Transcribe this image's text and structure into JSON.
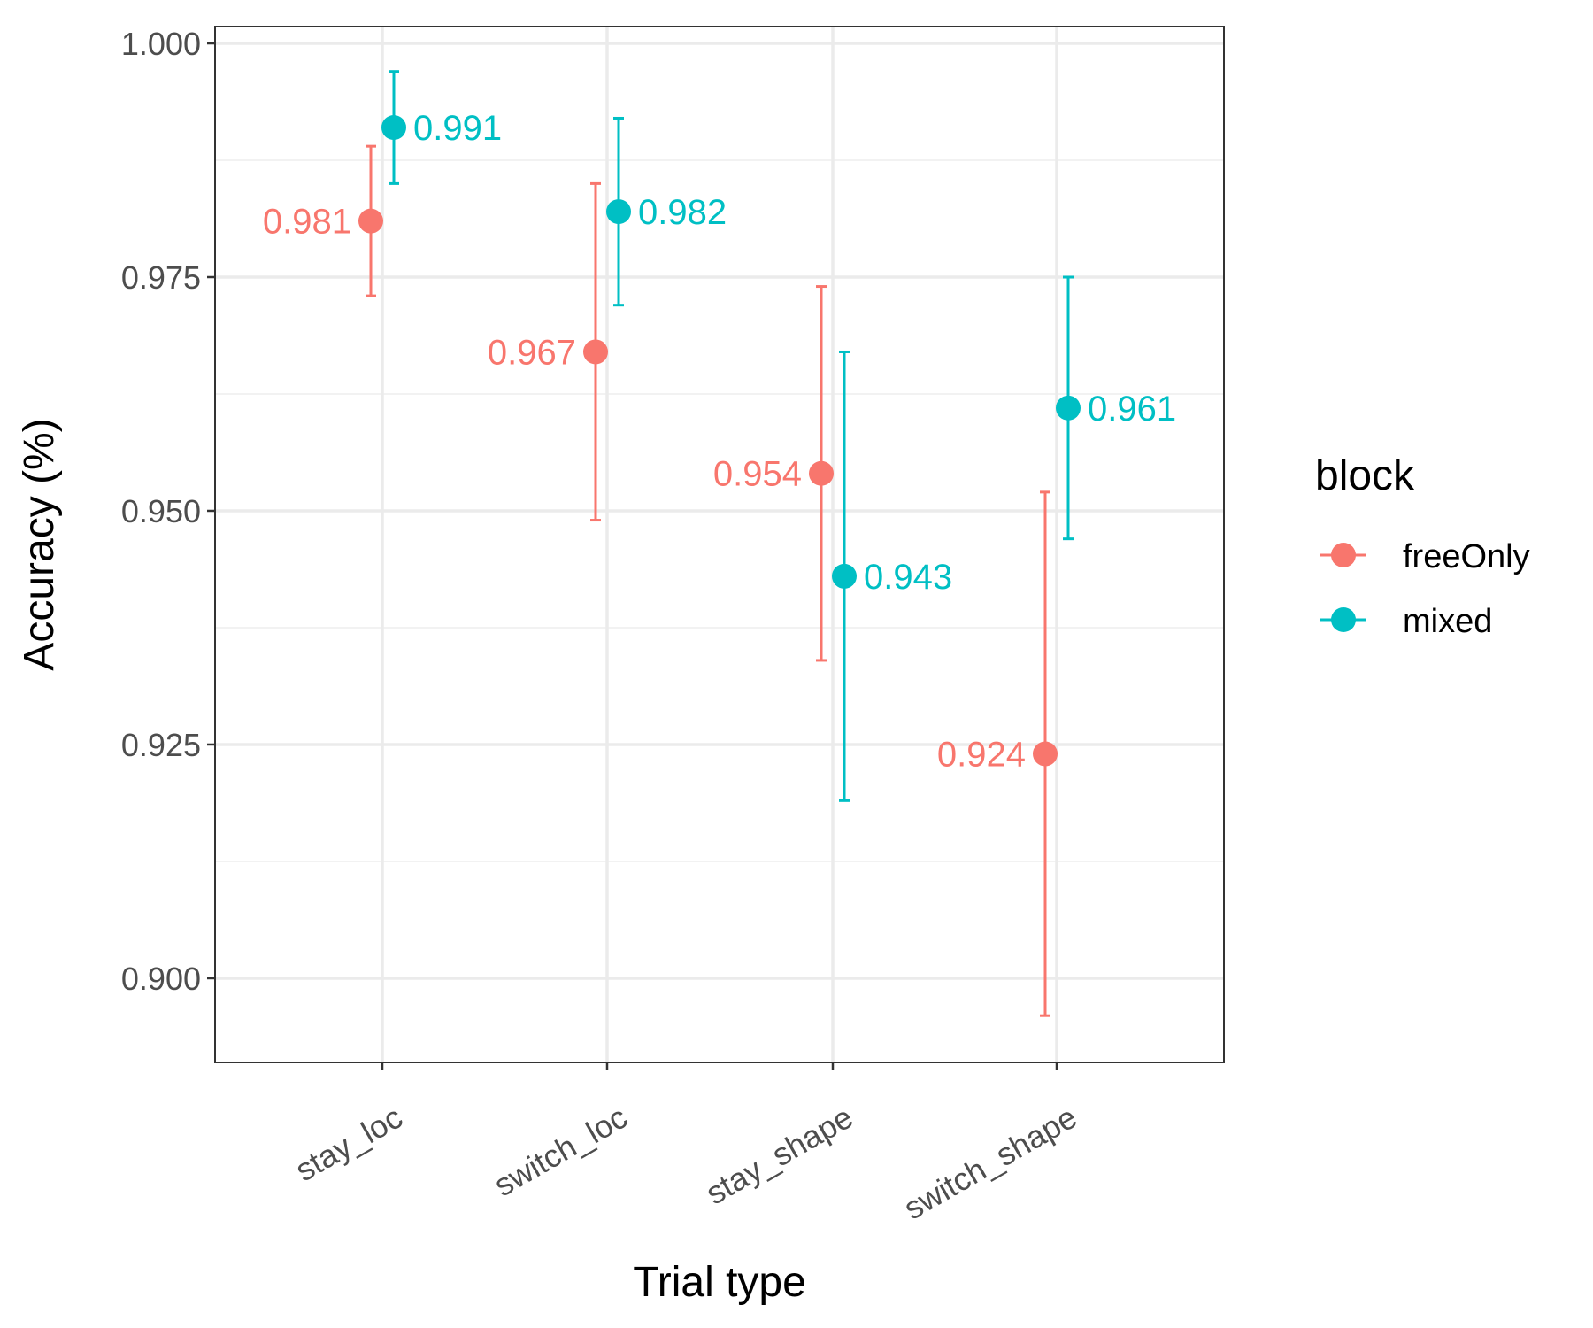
{
  "chart_data": {
    "type": "scatter",
    "categories": [
      "stay_loc",
      "switch_loc",
      "stay_shape",
      "switch_shape"
    ],
    "series": [
      {
        "name": "freeOnly",
        "color": "#F8766D",
        "values": [
          0.981,
          0.967,
          0.954,
          0.924
        ],
        "lower": [
          0.973,
          0.949,
          0.934,
          0.896
        ],
        "upper": [
          0.989,
          0.985,
          0.974,
          0.952
        ],
        "labels": [
          "0.981",
          "0.967",
          "0.954",
          "0.924"
        ]
      },
      {
        "name": "mixed",
        "color": "#00BFC4",
        "values": [
          0.991,
          0.982,
          0.943,
          0.961
        ],
        "lower": [
          0.985,
          0.972,
          0.919,
          0.947
        ],
        "upper": [
          0.997,
          0.992,
          0.967,
          0.975
        ],
        "labels": [
          "0.991",
          "0.982",
          "0.943",
          "0.961"
        ]
      }
    ],
    "xlabel": "Trial type",
    "ylabel": "Accuracy (%)",
    "ylim": [
      0.891,
      1.0018
    ],
    "yticks": [
      0.9,
      0.925,
      0.95,
      0.975,
      1.0
    ],
    "ytick_labels": [
      "0.900",
      "0.925",
      "0.950",
      "0.975",
      "1.000"
    ],
    "legend": {
      "title": "block",
      "placement": "right"
    },
    "grid": true,
    "error_bars": true
  }
}
